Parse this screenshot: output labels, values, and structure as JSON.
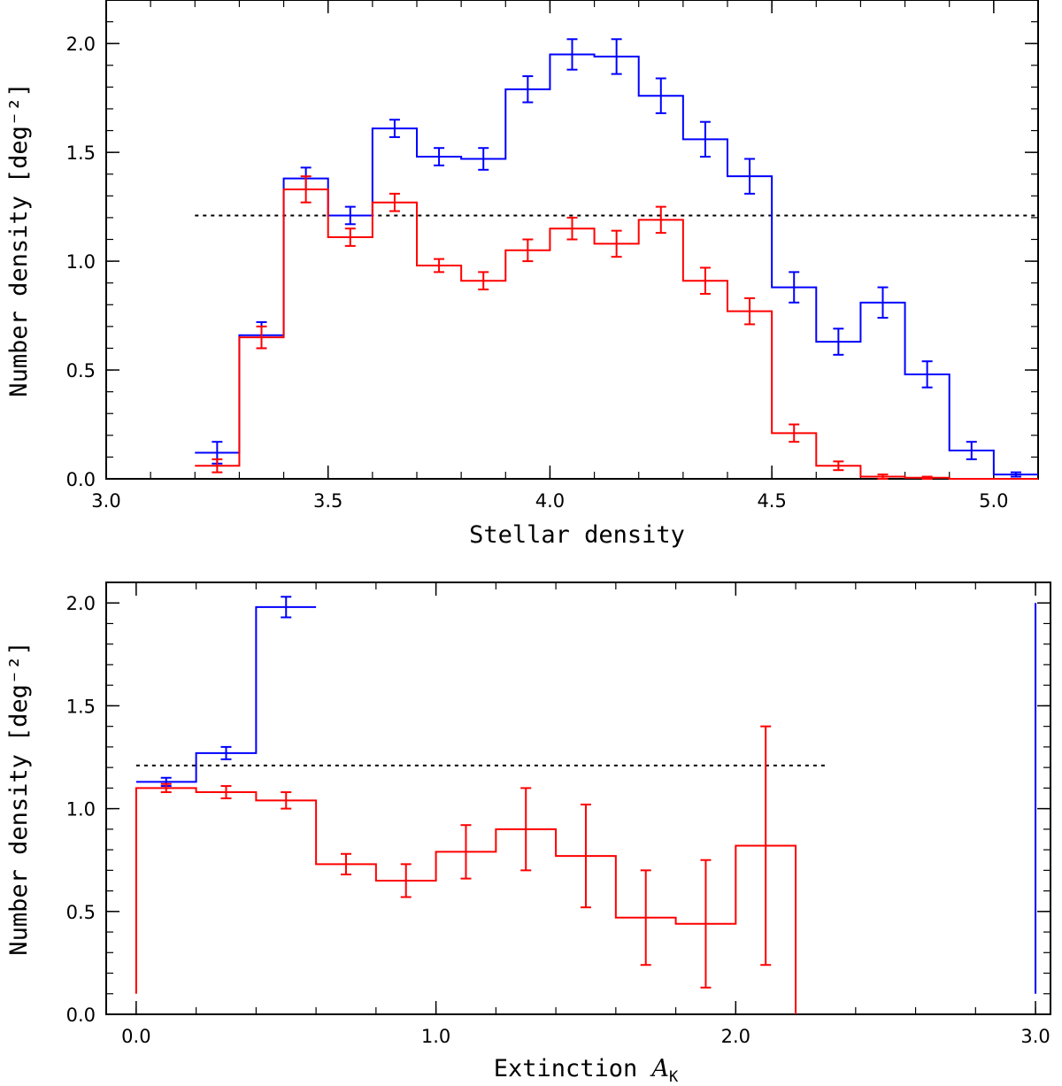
{
  "chart_data": [
    {
      "type": "histogram",
      "xlabel": "Stellar density",
      "ylabel": "Number density",
      "ylabel_unit": "[deg⁻²]",
      "xlim": [
        3.0,
        5.1
      ],
      "ylim": [
        0.0,
        2.2
      ],
      "xticks": [
        3.0,
        3.5,
        4.0,
        4.5,
        5.0
      ],
      "xtick_labels": [
        "3.0",
        "3.5",
        "4.0",
        "4.5",
        "5.0"
      ],
      "yticks": [
        0.0,
        0.5,
        1.0,
        1.5,
        2.0
      ],
      "ytick_labels": [
        "0.0",
        "0.5",
        "1.0",
        "1.5",
        "2.0"
      ],
      "reference_line": {
        "value": 1.21,
        "x_range": [
          3.2,
          5.1
        ],
        "style": "dotted",
        "color": "#000000"
      },
      "bin_edges": [
        3.2,
        3.3,
        3.4,
        3.5,
        3.6,
        3.7,
        3.8,
        3.9,
        4.0,
        4.1,
        4.2,
        4.3,
        4.4,
        4.5,
        4.6,
        4.7,
        4.8,
        4.9,
        5.0,
        5.1
      ],
      "series": [
        {
          "name": "blue",
          "color": "#0000ff",
          "values": [
            0.12,
            0.66,
            1.38,
            1.21,
            1.61,
            1.48,
            1.47,
            1.79,
            1.95,
            1.94,
            1.76,
            1.56,
            1.39,
            0.88,
            0.63,
            0.81,
            0.48,
            0.13,
            0.02
          ],
          "errors": [
            0.05,
            0.06,
            0.05,
            0.04,
            0.04,
            0.04,
            0.05,
            0.06,
            0.07,
            0.08,
            0.08,
            0.08,
            0.08,
            0.07,
            0.06,
            0.07,
            0.06,
            0.04,
            0.01
          ]
        },
        {
          "name": "red",
          "color": "#ff0000",
          "values": [
            0.06,
            0.65,
            1.33,
            1.11,
            1.27,
            0.98,
            0.91,
            1.05,
            1.15,
            1.08,
            1.19,
            0.91,
            0.77,
            0.21,
            0.06,
            0.01,
            0.005,
            0.0,
            0.0
          ],
          "errors": [
            0.03,
            0.05,
            0.06,
            0.04,
            0.04,
            0.03,
            0.04,
            0.05,
            0.05,
            0.06,
            0.06,
            0.06,
            0.06,
            0.04,
            0.02,
            0.01,
            0.005,
            0.0,
            0.0
          ]
        }
      ]
    },
    {
      "type": "histogram",
      "xlabel": "Extinction ",
      "xlabel_symbol": "A",
      "xlabel_subscript": "K",
      "ylabel": "Number density",
      "ylabel_unit": "[deg⁻²]",
      "xlim": [
        -0.1,
        3.05
      ],
      "ylim": [
        0.0,
        2.1
      ],
      "xticks": [
        0.0,
        1.0,
        2.0,
        3.0
      ],
      "xtick_labels": [
        "0.0",
        "1.0",
        "2.0",
        "3.0"
      ],
      "yticks": [
        0.0,
        0.5,
        1.0,
        1.5,
        2.0
      ],
      "ytick_labels": [
        "0.0",
        "0.5",
        "1.0",
        "1.5",
        "2.0"
      ],
      "reference_line": {
        "value": 1.21,
        "x_range": [
          0.0,
          2.3
        ],
        "style": "dotted",
        "color": "#000000"
      },
      "bin_edges": [
        0.0,
        0.2,
        0.4,
        0.6,
        0.8,
        1.0,
        1.2,
        1.4,
        1.6,
        1.8,
        2.0,
        2.2
      ],
      "series": [
        {
          "name": "blue",
          "color": "#0000ff",
          "bin_edges": [
            0.0,
            0.2,
            0.4,
            0.6
          ],
          "values": [
            1.13,
            1.27,
            1.98
          ],
          "errors": [
            0.02,
            0.03,
            0.05
          ],
          "extra_vertical_line": {
            "x": 3.0,
            "y_range": [
              0.1,
              2.0
            ]
          }
        },
        {
          "name": "red",
          "color": "#ff0000",
          "values": [
            1.1,
            1.08,
            1.04,
            0.73,
            0.65,
            0.79,
            0.9,
            0.77,
            0.47,
            0.44,
            0.82
          ],
          "errors": [
            0.02,
            0.03,
            0.04,
            0.05,
            0.08,
            0.13,
            0.2,
            0.25,
            0.23,
            0.31,
            0.58
          ],
          "start_from": 0.1
        }
      ]
    }
  ]
}
